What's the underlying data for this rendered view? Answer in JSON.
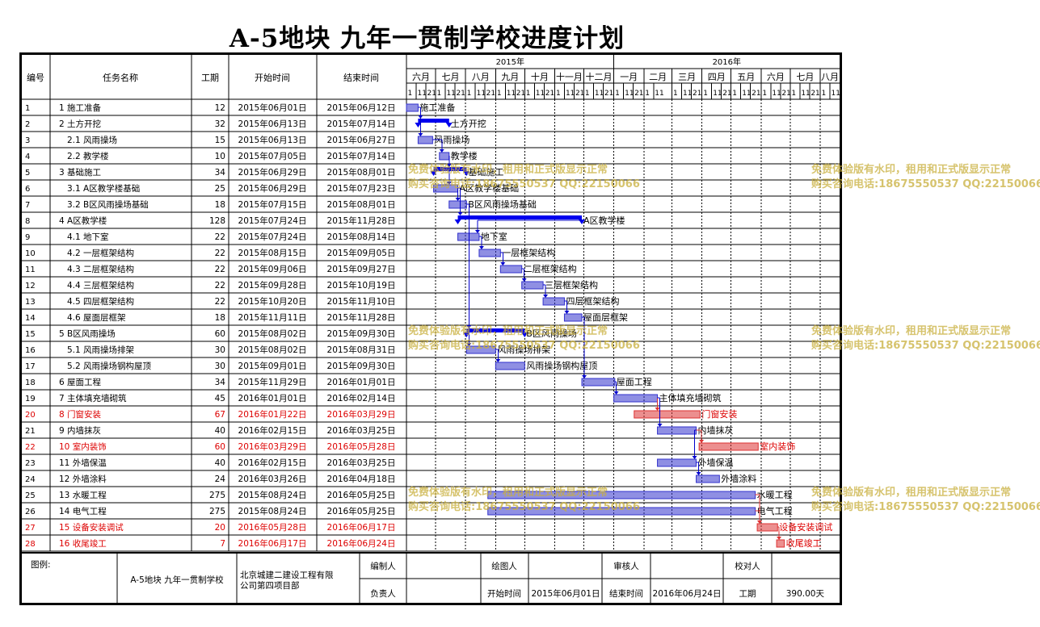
{
  "title": "A-5地块 九年一贯制学校进度计划",
  "columns": {
    "id": "编号",
    "name": "任务名称",
    "duration": "工期",
    "start": "开始时间",
    "end": "结束时间"
  },
  "timeline": {
    "years": [
      "2015年",
      "2016年"
    ],
    "months": [
      "六月",
      "七月",
      "八月",
      "九月",
      "十月",
      "十一月",
      "十二月",
      "一月",
      "二月",
      "三月",
      "四月",
      "五月",
      "六月",
      "七月",
      "八月"
    ],
    "dekads": [
      "1",
      "11",
      "21"
    ],
    "dekads_feb": [
      "1",
      "11"
    ],
    "project_start": "2015-06-01",
    "chart_last_day": "2016-08-20"
  },
  "colors": {
    "normal": "#3333cc",
    "critical": "#dd3333",
    "summary": "#0000ee",
    "critical_text": "#dd0000"
  },
  "tasks": [
    {
      "id": "1",
      "name": "1 施工准备",
      "indent": 0,
      "duration": "12",
      "start": "2015年06月01日",
      "end": "2015年06月12日",
      "s": "2015-06-01",
      "e": "2015-06-12",
      "type": "task",
      "label": "施工准备"
    },
    {
      "id": "2",
      "name": "2 土方开挖",
      "indent": 0,
      "duration": "32",
      "start": "2015年06月13日",
      "end": "2015年07月14日",
      "s": "2015-06-13",
      "e": "2015-07-14",
      "type": "summary",
      "label": "土方开挖"
    },
    {
      "id": "3",
      "name": "2.1 风雨操场",
      "indent": 1,
      "duration": "15",
      "start": "2015年06月13日",
      "end": "2015年06月27日",
      "s": "2015-06-13",
      "e": "2015-06-27",
      "type": "task",
      "label": "风雨操场"
    },
    {
      "id": "4",
      "name": "2.2 教学楼",
      "indent": 1,
      "duration": "10",
      "start": "2015年07月05日",
      "end": "2015年07月14日",
      "s": "2015-07-05",
      "e": "2015-07-14",
      "type": "task",
      "label": "教学楼"
    },
    {
      "id": "5",
      "name": "3 基础施工",
      "indent": 0,
      "duration": "34",
      "start": "2015年06月29日",
      "end": "2015年08月01日",
      "s": "2015-06-29",
      "e": "2015-08-01",
      "type": "summary",
      "label": "基础施工"
    },
    {
      "id": "6",
      "name": "3.1 A区教学楼基础",
      "indent": 1,
      "duration": "25",
      "start": "2015年06月29日",
      "end": "2015年07月23日",
      "s": "2015-06-29",
      "e": "2015-07-23",
      "type": "task",
      "label": "A区教学楼基础"
    },
    {
      "id": "7",
      "name": "3.2 B区风雨操场基础",
      "indent": 1,
      "duration": "18",
      "start": "2015年07月15日",
      "end": "2015年08月01日",
      "s": "2015-07-15",
      "e": "2015-08-01",
      "type": "task",
      "label": "B区风雨操场基础"
    },
    {
      "id": "8",
      "name": "4 A区教学楼",
      "indent": 0,
      "duration": "128",
      "start": "2015年07月24日",
      "end": "2015年11月28日",
      "s": "2015-07-24",
      "e": "2015-11-28",
      "type": "summary",
      "label": "A区教学楼"
    },
    {
      "id": "9",
      "name": "4.1 地下室",
      "indent": 1,
      "duration": "22",
      "start": "2015年07月24日",
      "end": "2015年08月14日",
      "s": "2015-07-24",
      "e": "2015-08-14",
      "type": "task",
      "label": "地下室"
    },
    {
      "id": "10",
      "name": "4.2 一层框架结构",
      "indent": 1,
      "duration": "22",
      "start": "2015年08月15日",
      "end": "2015年09月05日",
      "s": "2015-08-15",
      "e": "2015-09-05",
      "type": "task",
      "label": "一层框架结构"
    },
    {
      "id": "11",
      "name": "4.3 二层框架结构",
      "indent": 1,
      "duration": "22",
      "start": "2015年09月06日",
      "end": "2015年09月27日",
      "s": "2015-09-06",
      "e": "2015-09-27",
      "type": "task",
      "label": "二层框架结构"
    },
    {
      "id": "12",
      "name": "4.4 三层框架结构",
      "indent": 1,
      "duration": "22",
      "start": "2015年09月28日",
      "end": "2015年10月19日",
      "s": "2015-09-28",
      "e": "2015-10-19",
      "type": "task",
      "label": "三层框架结构"
    },
    {
      "id": "13",
      "name": "4.5 四层框架结构",
      "indent": 1,
      "duration": "22",
      "start": "2015年10月20日",
      "end": "2015年11月10日",
      "s": "2015-10-20",
      "e": "2015-11-10",
      "type": "task",
      "label": "四层框架结构"
    },
    {
      "id": "14",
      "name": "4.6 屋面层框架",
      "indent": 1,
      "duration": "18",
      "start": "2015年11月11日",
      "end": "2015年11月28日",
      "s": "2015-11-11",
      "e": "2015-11-28",
      "type": "task",
      "label": "屋面层框架"
    },
    {
      "id": "15",
      "name": "5 B区风雨操场",
      "indent": 0,
      "duration": "60",
      "start": "2015年08月02日",
      "end": "2015年09月30日",
      "s": "2015-08-02",
      "e": "2015-09-30",
      "type": "summary",
      "label": "B区风雨操场"
    },
    {
      "id": "16",
      "name": "5.1 风雨操场排架",
      "indent": 1,
      "duration": "30",
      "start": "2015年08月02日",
      "end": "2015年08月31日",
      "s": "2015-08-02",
      "e": "2015-08-31",
      "type": "task",
      "label": "风雨操场排架"
    },
    {
      "id": "17",
      "name": "5.2 风雨操场钢构屋顶",
      "indent": 1,
      "duration": "30",
      "start": "2015年09月01日",
      "end": "2015年09月30日",
      "s": "2015-09-01",
      "e": "2015-09-30",
      "type": "task",
      "label": "风雨操场钢构屋顶"
    },
    {
      "id": "18",
      "name": "6 屋面工程",
      "indent": 0,
      "duration": "34",
      "start": "2015年11月29日",
      "end": "2016年01月01日",
      "s": "2015-11-29",
      "e": "2016-01-01",
      "type": "task",
      "label": "屋面工程"
    },
    {
      "id": "19",
      "name": "7 主体填充墙砌筑",
      "indent": 0,
      "duration": "45",
      "start": "2016年01月01日",
      "end": "2016年02月14日",
      "s": "2016-01-01",
      "e": "2016-02-14",
      "type": "task",
      "label": "主体填充墙砌筑"
    },
    {
      "id": "20",
      "name": "8 门窗安装",
      "indent": 0,
      "duration": "67",
      "start": "2016年01月22日",
      "end": "2016年03月29日",
      "s": "2016-01-22",
      "e": "2016-03-29",
      "type": "critical",
      "label": "门窗安装"
    },
    {
      "id": "21",
      "name": "9 内墙抹灰",
      "indent": 0,
      "duration": "40",
      "start": "2016年02月15日",
      "end": "2016年03月25日",
      "s": "2016-02-15",
      "e": "2016-03-25",
      "type": "task",
      "label": "内墙抹灰"
    },
    {
      "id": "22",
      "name": "10 室内装饰",
      "indent": 0,
      "duration": "60",
      "start": "2016年03月29日",
      "end": "2016年05月28日",
      "s": "2016-03-29",
      "e": "2016-05-28",
      "type": "critical",
      "label": "室内装饰"
    },
    {
      "id": "23",
      "name": "11 外墙保温",
      "indent": 0,
      "duration": "40",
      "start": "2016年02月15日",
      "end": "2016年03月25日",
      "s": "2016-02-15",
      "e": "2016-03-25",
      "type": "task",
      "label": "外墙保温"
    },
    {
      "id": "24",
      "name": "12 外墙涂料",
      "indent": 0,
      "duration": "24",
      "start": "2016年03月26日",
      "end": "2016年04月18日",
      "s": "2016-03-26",
      "e": "2016-04-18",
      "type": "task",
      "label": "外墙涂料"
    },
    {
      "id": "25",
      "name": "13 水暖工程",
      "indent": 0,
      "duration": "275",
      "start": "2015年08月24日",
      "end": "2016年05月25日",
      "s": "2015-08-24",
      "e": "2016-05-25",
      "type": "task",
      "label": "水暖工程"
    },
    {
      "id": "26",
      "name": "14 电气工程",
      "indent": 0,
      "duration": "275",
      "start": "2015年08月24日",
      "end": "2016年05月25日",
      "s": "2015-08-24",
      "e": "2016-05-25",
      "type": "task",
      "label": "电气工程"
    },
    {
      "id": "27",
      "name": "15 设备安装调试",
      "indent": 0,
      "duration": "20",
      "start": "2016年05月28日",
      "end": "2016年06月17日",
      "s": "2016-05-28",
      "e": "2016-06-17",
      "type": "critical",
      "label": "设备安装调试"
    },
    {
      "id": "28",
      "name": "16 收尾竣工",
      "indent": 0,
      "duration": "7",
      "start": "2016年06月17日",
      "end": "2016年06月24日",
      "s": "2016-06-17",
      "e": "2016-06-24",
      "type": "critical",
      "label": "收尾竣工"
    }
  ],
  "links": [
    [
      1,
      2
    ],
    [
      1,
      3
    ],
    [
      3,
      4
    ],
    [
      4,
      5
    ],
    [
      4,
      6
    ],
    [
      6,
      7
    ],
    [
      6,
      8
    ],
    [
      8,
      9
    ],
    [
      9,
      10
    ],
    [
      10,
      11
    ],
    [
      11,
      12
    ],
    [
      12,
      13
    ],
    [
      13,
      14
    ],
    [
      7,
      15
    ],
    [
      7,
      16
    ],
    [
      16,
      17
    ],
    [
      14,
      18
    ],
    [
      18,
      19
    ],
    [
      19,
      20
    ],
    [
      19,
      21
    ],
    [
      21,
      22
    ],
    [
      21,
      23
    ],
    [
      23,
      24
    ],
    [
      25,
      27
    ],
    [
      26,
      27
    ],
    [
      27,
      28
    ]
  ],
  "footer": {
    "legend_label": "图例:",
    "project_name": "A-5地块 九年一贯制学校",
    "company": "北京城建二建设工程有限公司第四项目部",
    "compiler_label": "编制人",
    "drafter_label": "绘图人",
    "reviewer_label": "审核人",
    "checker_label": "校对人",
    "responsible_label": "负责人",
    "start_label": "开始时间",
    "start_value": "2015年06月01日",
    "end_label": "结束时间",
    "end_value": "2016年06月24日",
    "duration_label": "工期",
    "duration_value": "390.00天"
  },
  "watermark": {
    "line1": "免费体验版有水印，租用和正式版显示正常",
    "line2": "购买咨询电话:18675550537 QQ:22150066"
  }
}
